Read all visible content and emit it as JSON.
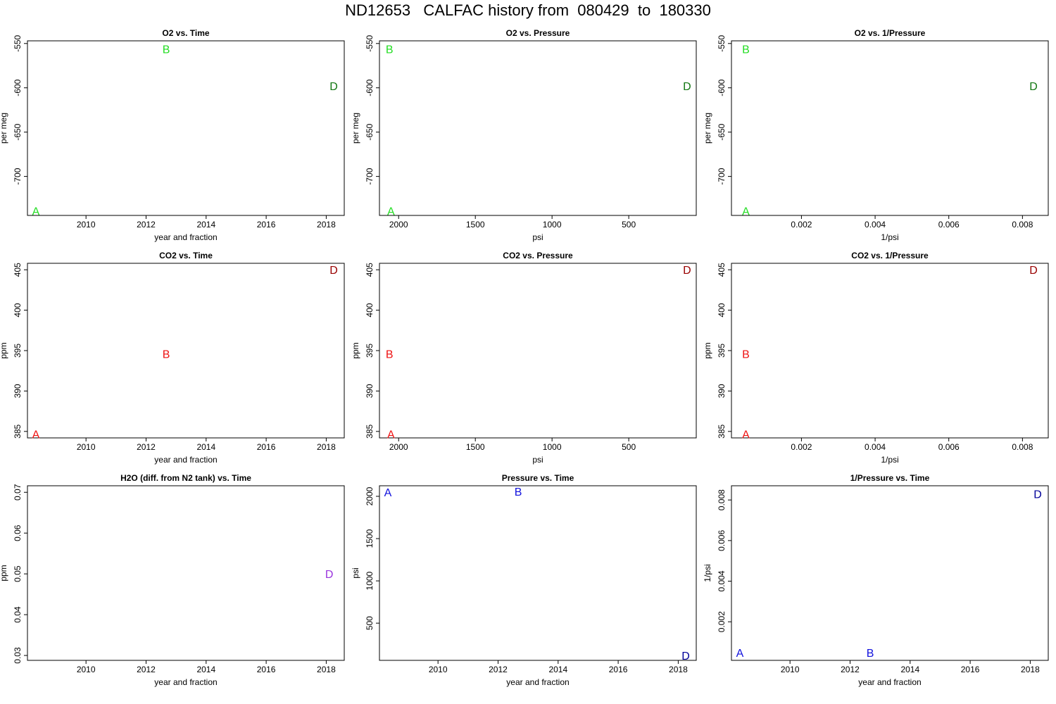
{
  "page_title": "ND12653   CALFAC history from  080429  to  180330",
  "chart_data": [
    {
      "type": "scatter",
      "title": "O2 vs. Time",
      "xlabel": "year and fraction",
      "ylabel": "per meg",
      "xlim": [
        2008.05,
        2018.6
      ],
      "ylim": [
        -744,
        -547
      ],
      "xticks": [
        2010,
        2012,
        2014,
        2016,
        2018
      ],
      "xtick_labels": [
        "2010",
        "2012",
        "2014",
        "2016",
        "2018"
      ],
      "yticks": [
        -700,
        -650,
        -600,
        -550
      ],
      "ytick_labels": [
        "-700",
        "-650",
        "-600",
        "-550"
      ],
      "points": [
        {
          "label": "A",
          "x": 2008.33,
          "y": -739,
          "color": "#22dd22"
        },
        {
          "label": "B",
          "x": 2012.67,
          "y": -556,
          "color": "#22dd22"
        },
        {
          "label": "D",
          "x": 2018.25,
          "y": -598,
          "color": "#117711"
        }
      ]
    },
    {
      "type": "scatter",
      "title": "O2 vs. Pressure",
      "xlabel": "psi",
      "ylabel": "per meg",
      "xlim": [
        2125,
        60
      ],
      "ylim": [
        -744,
        -547
      ],
      "xticks": [
        2000,
        1500,
        1000,
        500
      ],
      "xtick_labels": [
        "2000",
        "1500",
        "1000",
        "500"
      ],
      "yticks": [
        -700,
        -650,
        -600,
        -550
      ],
      "ytick_labels": [
        "-700",
        "-650",
        "-600",
        "-550"
      ],
      "points": [
        {
          "label": "A",
          "x": 2050,
          "y": -739,
          "color": "#22dd22"
        },
        {
          "label": "B",
          "x": 2060,
          "y": -556,
          "color": "#22dd22"
        },
        {
          "label": "D",
          "x": 120,
          "y": -598,
          "color": "#117711"
        }
      ]
    },
    {
      "type": "scatter",
      "title": "O2 vs. 1/Pressure",
      "xlabel": "1/psi",
      "ylabel": "per meg",
      "xlim": [
        0.0001,
        0.0087
      ],
      "ylim": [
        -744,
        -547
      ],
      "xticks": [
        0.002,
        0.004,
        0.006,
        0.008
      ],
      "xtick_labels": [
        "0.002",
        "0.004",
        "0.006",
        "0.008"
      ],
      "yticks": [
        -700,
        -650,
        -600,
        -550
      ],
      "ytick_labels": [
        "-700",
        "-650",
        "-600",
        "-550"
      ],
      "points": [
        {
          "label": "A",
          "x": 0.00049,
          "y": -739,
          "color": "#22dd22"
        },
        {
          "label": "B",
          "x": 0.00049,
          "y": -556,
          "color": "#22dd22"
        },
        {
          "label": "D",
          "x": 0.0083,
          "y": -598,
          "color": "#117711"
        }
      ]
    },
    {
      "type": "scatter",
      "title": "CO2 vs. Time",
      "xlabel": "year and fraction",
      "ylabel": "ppm",
      "xlim": [
        2008.05,
        2018.6
      ],
      "ylim": [
        384.2,
        405.8
      ],
      "xticks": [
        2010,
        2012,
        2014,
        2016,
        2018
      ],
      "xtick_labels": [
        "2010",
        "2012",
        "2014",
        "2016",
        "2018"
      ],
      "yticks": [
        385,
        390,
        395,
        400,
        405
      ],
      "ytick_labels": [
        "385",
        "390",
        "395",
        "400",
        "405"
      ],
      "points": [
        {
          "label": "A",
          "x": 2008.33,
          "y": 384.7,
          "color": "#ee1111"
        },
        {
          "label": "B",
          "x": 2012.67,
          "y": 394.6,
          "color": "#ee1111"
        },
        {
          "label": "D",
          "x": 2018.25,
          "y": 405.0,
          "color": "#990000"
        }
      ]
    },
    {
      "type": "scatter",
      "title": "CO2 vs. Pressure",
      "xlabel": "psi",
      "ylabel": "ppm",
      "xlim": [
        2125,
        60
      ],
      "ylim": [
        384.2,
        405.8
      ],
      "xticks": [
        2000,
        1500,
        1000,
        500
      ],
      "xtick_labels": [
        "2000",
        "1500",
        "1000",
        "500"
      ],
      "yticks": [
        385,
        390,
        395,
        400,
        405
      ],
      "ytick_labels": [
        "385",
        "390",
        "395",
        "400",
        "405"
      ],
      "points": [
        {
          "label": "A",
          "x": 2050,
          "y": 384.7,
          "color": "#ee1111"
        },
        {
          "label": "B",
          "x": 2060,
          "y": 394.6,
          "color": "#ee1111"
        },
        {
          "label": "D",
          "x": 120,
          "y": 405.0,
          "color": "#990000"
        }
      ]
    },
    {
      "type": "scatter",
      "title": "CO2 vs. 1/Pressure",
      "xlabel": "1/psi",
      "ylabel": "ppm",
      "xlim": [
        0.0001,
        0.0087
      ],
      "ylim": [
        384.2,
        405.8
      ],
      "xticks": [
        0.002,
        0.004,
        0.006,
        0.008
      ],
      "xtick_labels": [
        "0.002",
        "0.004",
        "0.006",
        "0.008"
      ],
      "yticks": [
        385,
        390,
        395,
        400,
        405
      ],
      "ytick_labels": [
        "385",
        "390",
        "395",
        "400",
        "405"
      ],
      "points": [
        {
          "label": "A",
          "x": 0.00049,
          "y": 384.7,
          "color": "#ee1111"
        },
        {
          "label": "B",
          "x": 0.00049,
          "y": 394.6,
          "color": "#ee1111"
        },
        {
          "label": "D",
          "x": 0.0083,
          "y": 405.0,
          "color": "#990000"
        }
      ]
    },
    {
      "type": "scatter",
      "title": "H2O (diff. from N2 tank) vs. Time",
      "xlabel": "year and fraction",
      "ylabel": "ppm",
      "xlim": [
        2008.05,
        2018.6
      ],
      "ylim": [
        0.0288,
        0.0716
      ],
      "xticks": [
        2010,
        2012,
        2014,
        2016,
        2018
      ],
      "xtick_labels": [
        "2010",
        "2012",
        "2014",
        "2016",
        "2018"
      ],
      "yticks": [
        0.03,
        0.04,
        0.05,
        0.06,
        0.07
      ],
      "ytick_labels": [
        "0.03",
        "0.04",
        "0.05",
        "0.06",
        "0.07"
      ],
      "points": [
        {
          "label": "D",
          "x": 2018.1,
          "y": 0.05,
          "color": "#9933dd"
        }
      ]
    },
    {
      "type": "scatter",
      "title": "Pressure vs. Time",
      "xlabel": "year and fraction",
      "ylabel": "psi",
      "xlim": [
        2008.05,
        2018.6
      ],
      "ylim": [
        60,
        2125
      ],
      "xticks": [
        2010,
        2012,
        2014,
        2016,
        2018
      ],
      "xtick_labels": [
        "2010",
        "2012",
        "2014",
        "2016",
        "2018"
      ],
      "yticks": [
        500,
        1000,
        1500,
        2000
      ],
      "ytick_labels": [
        "500",
        "1000",
        "1500",
        "2000"
      ],
      "points": [
        {
          "label": "A",
          "x": 2008.33,
          "y": 2050,
          "color": "#1111dd"
        },
        {
          "label": "B",
          "x": 2012.67,
          "y": 2060,
          "color": "#1111dd"
        },
        {
          "label": "D",
          "x": 2018.25,
          "y": 120,
          "color": "#000099"
        }
      ]
    },
    {
      "type": "scatter",
      "title": "1/Pressure vs. Time",
      "xlabel": "year and fraction",
      "ylabel": "1/psi",
      "xlim": [
        2008.05,
        2018.6
      ],
      "ylim": [
        0.0001,
        0.0087
      ],
      "xticks": [
        2010,
        2012,
        2014,
        2016,
        2018
      ],
      "xtick_labels": [
        "2010",
        "2012",
        "2014",
        "2016",
        "2018"
      ],
      "yticks": [
        0.002,
        0.004,
        0.006,
        0.008
      ],
      "ytick_labels": [
        "0.002",
        "0.004",
        "0.006",
        "0.008"
      ],
      "points": [
        {
          "label": "A",
          "x": 2008.33,
          "y": 0.00049,
          "color": "#1111dd"
        },
        {
          "label": "B",
          "x": 2012.67,
          "y": 0.00049,
          "color": "#1111dd"
        },
        {
          "label": "D",
          "x": 2018.25,
          "y": 0.0083,
          "color": "#000099"
        }
      ]
    }
  ]
}
